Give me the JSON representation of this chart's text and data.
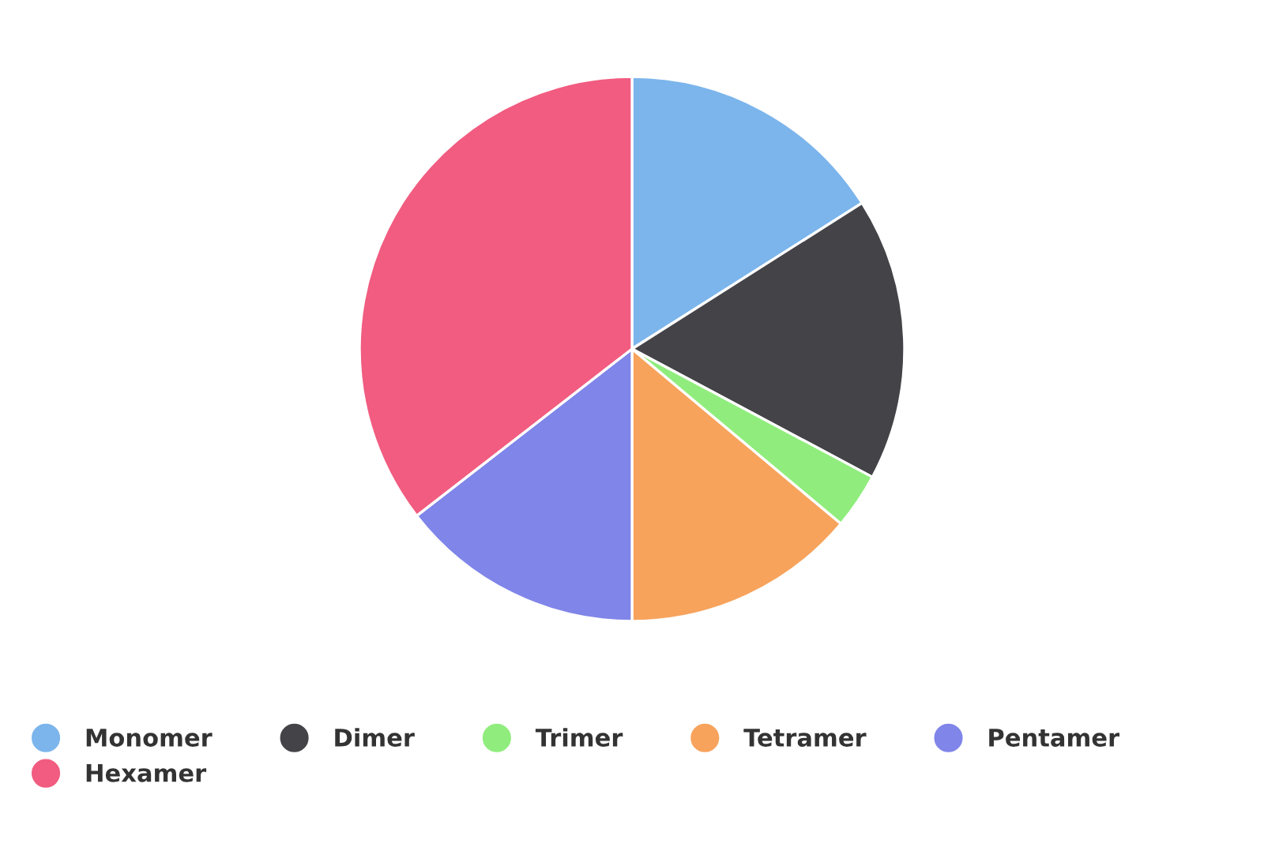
{
  "chart_data": {
    "type": "pie",
    "categories": [
      "Monomer",
      "Dimer",
      "Trimer",
      "Tetramer",
      "Pentamer",
      "Hexamer"
    ],
    "values": [
      16,
      16.8,
      3.3,
      13.9,
      14.5,
      35.5
    ],
    "colors": [
      "#7cb5ec",
      "#434348",
      "#90ed7d",
      "#f7a35c",
      "#8085e9",
      "#f15c80"
    ],
    "legend": "bottom"
  }
}
